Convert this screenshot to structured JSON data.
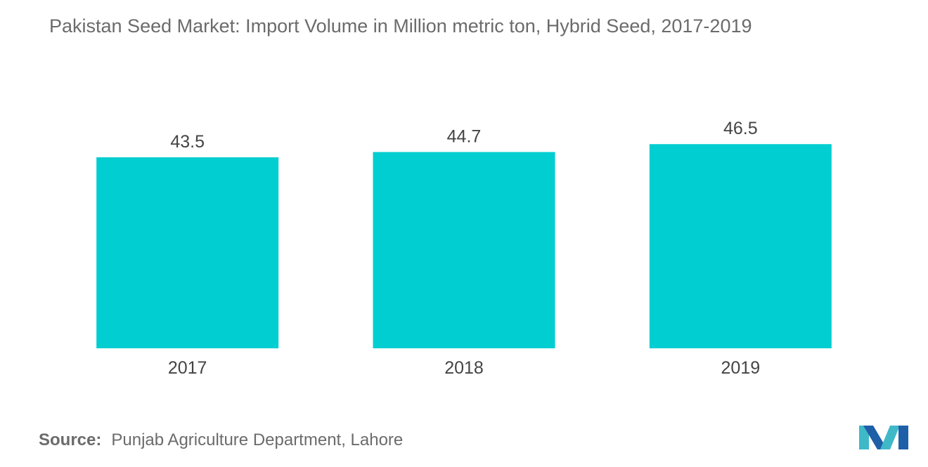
{
  "chart_data": {
    "type": "bar",
    "title": "Pakistan Seed Market: Import Volume in Million metric ton, Hybrid Seed, 2017-2019",
    "categories": [
      "2017",
      "2018",
      "2019"
    ],
    "values": [
      43.5,
      44.7,
      46.5
    ],
    "value_labels": [
      "43.5",
      "44.7",
      "46.5"
    ],
    "bar_color": "#00ced1",
    "xlabel": "",
    "ylabel": "",
    "ylim": [
      0,
      50
    ],
    "grid": false,
    "legend": "none"
  },
  "source": {
    "label": "Source:",
    "text": "Punjab Agriculture Department, Lahore"
  },
  "logo": {
    "icon": "mordor-intelligence-logo-icon",
    "colors": [
      "#1f5fa8",
      "#3fb8c8"
    ]
  }
}
